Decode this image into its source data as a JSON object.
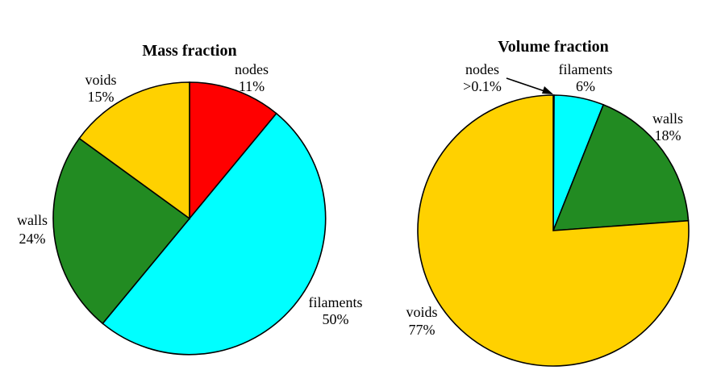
{
  "chart_data": [
    {
      "type": "pie",
      "title": "Mass fraction",
      "series": [
        {
          "name": "nodes",
          "value": 11,
          "value_label": "11%",
          "color": "#ff0000"
        },
        {
          "name": "filaments",
          "value": 50,
          "value_label": "50%",
          "color": "#00ffff"
        },
        {
          "name": "walls",
          "value": 24,
          "value_label": "24%",
          "color": "#228b22"
        },
        {
          "name": "voids",
          "value": 15,
          "value_label": "15%",
          "color": "#ffd100"
        }
      ],
      "start": "12 o'clock",
      "direction": "clockwise"
    },
    {
      "type": "pie",
      "title": "Volume fraction",
      "series": [
        {
          "name": "nodes",
          "value": 0.1,
          "value_label": ">0.1%",
          "color": "#ff0000"
        },
        {
          "name": "filaments",
          "value": 6,
          "value_label": "6%",
          "color": "#00ffff"
        },
        {
          "name": "walls",
          "value": 18,
          "value_label": "18%",
          "color": "#228b22"
        },
        {
          "name": "voids",
          "value": 77,
          "value_label": "77%",
          "color": "#ffd100"
        }
      ],
      "start": "12 o'clock",
      "direction": "clockwise"
    }
  ]
}
